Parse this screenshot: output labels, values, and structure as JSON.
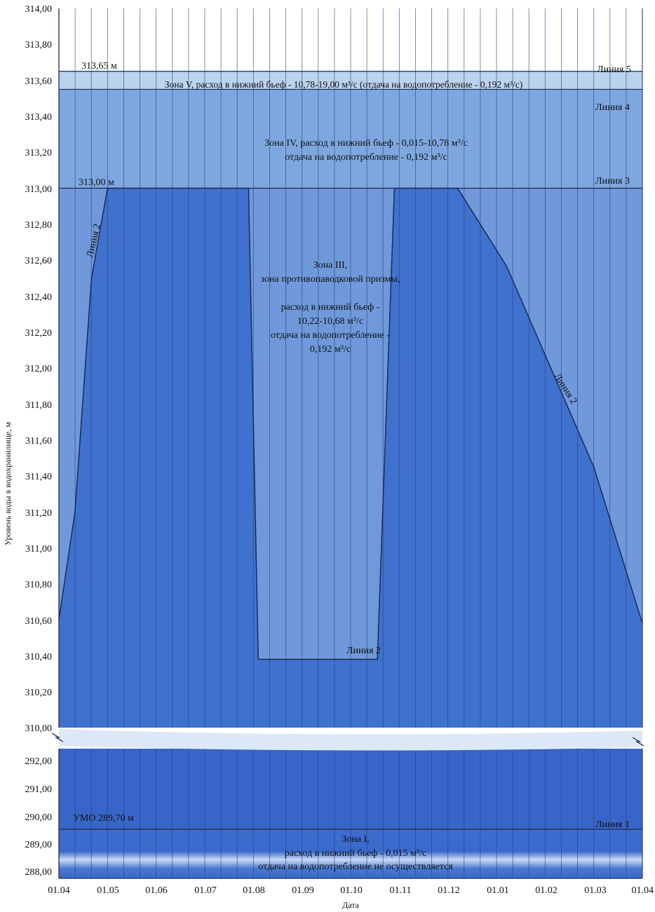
{
  "chart_data": {
    "type": "area",
    "xlabel": "Дата",
    "ylabel": "Уровень воды в водохранилище, м",
    "x_ticks": [
      "01.04",
      "01.05",
      "01.06",
      "01.07",
      "01.08",
      "01.09",
      "01.10",
      "01.11",
      "01.12",
      "01.01",
      "01.02",
      "01.03",
      "01.04"
    ],
    "y_upper": {
      "range": [
        310.0,
        314.0
      ],
      "ticks": [
        "314,00",
        "313,80",
        "313,60",
        "313,40",
        "313,20",
        "313,00",
        "312,80",
        "312,60",
        "312,40",
        "312,20",
        "312,00",
        "311,80",
        "311,60",
        "311,40",
        "311,20",
        "311,00",
        "310,80",
        "310,60",
        "310,40",
        "310,20",
        "310,00"
      ]
    },
    "y_lower": {
      "range": [
        288.0,
        292.5
      ],
      "ticks": [
        "292,00",
        "291,00",
        "290,00",
        "289,00",
        "288,00"
      ]
    },
    "grid": {
      "vertical_lines_per_month": 3,
      "horizontal": false
    },
    "axis_break": true,
    "lines": [
      {
        "name": "Линия 5",
        "level": 313.65,
        "label": "313,65 м"
      },
      {
        "name": "Линия 4",
        "level": 313.55
      },
      {
        "name": "Линия 3",
        "level": 313.0,
        "label": "313,00 м"
      },
      {
        "name": "Линия 1",
        "level": 289.7,
        "label": "УМО 289,70 м"
      }
    ],
    "line2": {
      "name": "Линия 2",
      "points": [
        {
          "x": 0.0,
          "y": 310.6
        },
        {
          "x": 0.33,
          "y": 311.2
        },
        {
          "x": 0.67,
          "y": 312.5
        },
        {
          "x": 1.0,
          "y": 313.0
        },
        {
          "x": 3.9,
          "y": 313.0
        },
        {
          "x": 4.1,
          "y": 310.38
        },
        {
          "x": 6.55,
          "y": 310.38
        },
        {
          "x": 6.9,
          "y": 313.0
        },
        {
          "x": 8.2,
          "y": 313.0
        },
        {
          "x": 9.2,
          "y": 312.57
        },
        {
          "x": 11.0,
          "y": 311.45
        },
        {
          "x": 12.0,
          "y": 310.58
        }
      ]
    },
    "zones": [
      {
        "name": "Зона V",
        "lines": [
          "Зона V, расход в нижний бьеф - 10,78-19,00 м³/с (отдача на водопотребление - 0,192 м³/с)"
        ]
      },
      {
        "name": "Зона IV",
        "lines": [
          "Зона IV, расход в нижний бьеф - 0,015-10,78 м³/с",
          "отдача на водопотребление - 0,192 м³/с"
        ]
      },
      {
        "name": "Зона III",
        "lines": [
          "Зона III,",
          "зона противопаводковой призмы,",
          "",
          "расход в нижний бьеф -",
          "10,22-10,68 м³/с",
          "отдача на водопотребление -",
          "0,192 м³/с"
        ]
      },
      {
        "name": "Зона I",
        "lines": [
          "Зона I,",
          "расход в нижний бьеф - 0,015 м³/с",
          "отдача на водопотребление не осуществляется"
        ]
      }
    ],
    "colors": {
      "zone5": "#bcd3ee",
      "zone4": "#7fa7df",
      "zone3": "#6f99db",
      "zone2": "#3f72cf",
      "lower": "#3865c8",
      "zone1": "#3a6acb",
      "band": "#dce8f6",
      "gridline": "#2a3f78",
      "line": "#1e2a55"
    }
  }
}
